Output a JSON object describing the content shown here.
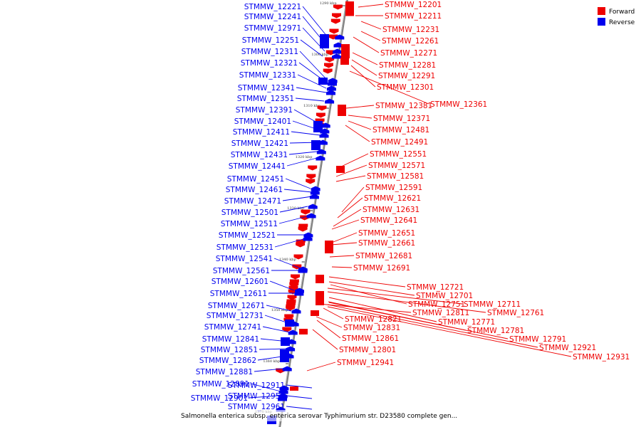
{
  "colors": {
    "forward": "#ee0000",
    "reverse": "#0000ee",
    "axis": "#808080"
  },
  "legend": [
    {
      "key": "forward",
      "label": "Forward"
    },
    {
      "key": "reverse",
      "label": "Reverse"
    }
  ],
  "caption": "Salmonella enterica subsp. enterica serovar Typhimurium str. D23580 complete gen...",
  "ticks": [
    "1290 kbp",
    "1300 kbp",
    "1310 kbp",
    "1320 kbp",
    "1330 kbp",
    "1340 kbp",
    "1350 kbp",
    "1360 kbp",
    "1370 kbp"
  ],
  "genes": [
    {
      "label": "STMMW_12201",
      "strand": "forward"
    },
    {
      "label": "STMMW_12211",
      "strand": "forward"
    },
    {
      "label": "STMMW_12221",
      "strand": "reverse"
    },
    {
      "label": "STMMW_12231",
      "strand": "forward"
    },
    {
      "label": "STMMW_12241",
      "strand": "reverse"
    },
    {
      "label": "STMMW_12261",
      "strand": "forward"
    },
    {
      "label": "STMMW_12271",
      "strand": "forward"
    },
    {
      "label": "STMMW_12281",
      "strand": "forward"
    },
    {
      "label": "STMMW_12291",
      "strand": "forward"
    },
    {
      "label": "STMMW_12301",
      "strand": "forward"
    },
    {
      "label": "STMMW_12361",
      "strand": "forward"
    },
    {
      "label": "STMMW_12381",
      "strand": "forward"
    },
    {
      "label": "STMMW_12371",
      "strand": "forward"
    },
    {
      "label": "STMMW_12481",
      "strand": "forward"
    },
    {
      "label": "STMMW_12491",
      "strand": "forward"
    },
    {
      "label": "STMMW_12551",
      "strand": "forward"
    },
    {
      "label": "STMMW_12571",
      "strand": "forward"
    },
    {
      "label": "STMMW_12581",
      "strand": "forward"
    },
    {
      "label": "STMMW_12591",
      "strand": "forward"
    },
    {
      "label": "STMMW_12621",
      "strand": "forward"
    },
    {
      "label": "STMMW_12631",
      "strand": "forward"
    },
    {
      "label": "STMMW_12641",
      "strand": "forward"
    },
    {
      "label": "STMMW_12651",
      "strand": "forward"
    },
    {
      "label": "STMMW_12661",
      "strand": "forward"
    },
    {
      "label": "STMMW_12681",
      "strand": "forward"
    },
    {
      "label": "STMMW_12691",
      "strand": "forward"
    },
    {
      "label": "STMMW_12721",
      "strand": "forward"
    },
    {
      "label": "STMMW_12701",
      "strand": "forward"
    },
    {
      "label": "STMMW_12751",
      "strand": "forward"
    },
    {
      "label": "STMMW_12711",
      "strand": "forward"
    },
    {
      "label": "STMMW_12811",
      "strand": "forward"
    },
    {
      "label": "STMMW_12761",
      "strand": "forward"
    },
    {
      "label": "STMMW_12821",
      "strand": "forward"
    },
    {
      "label": "STMMW_12771",
      "strand": "forward"
    },
    {
      "label": "STMMW_12831",
      "strand": "forward"
    },
    {
      "label": "STMMW_12781",
      "strand": "forward"
    },
    {
      "label": "STMMW_12861",
      "strand": "forward"
    },
    {
      "label": "STMMW_12791",
      "strand": "forward"
    },
    {
      "label": "STMMW_12801",
      "strand": "forward"
    },
    {
      "label": "STMMW_12921",
      "strand": "forward"
    },
    {
      "label": "STMMW_12931",
      "strand": "forward"
    },
    {
      "label": "STMMW_12941",
      "strand": "forward"
    },
    {
      "label": "STMMW_12971",
      "strand": "reverse"
    },
    {
      "label": "STMMW_12251",
      "strand": "reverse"
    },
    {
      "label": "STMMW_12311",
      "strand": "reverse"
    },
    {
      "label": "STMMW_12321",
      "strand": "reverse"
    },
    {
      "label": "STMMW_12331",
      "strand": "reverse"
    },
    {
      "label": "STMMW_12341",
      "strand": "reverse"
    },
    {
      "label": "STMMW_12351",
      "strand": "reverse"
    },
    {
      "label": "STMMW_12391",
      "strand": "reverse"
    },
    {
      "label": "STMMW_12401",
      "strand": "reverse"
    },
    {
      "label": "STMMW_12411",
      "strand": "reverse"
    },
    {
      "label": "STMMW_12421",
      "strand": "reverse"
    },
    {
      "label": "STMMW_12431",
      "strand": "reverse"
    },
    {
      "label": "STMMW_12441",
      "strand": "reverse"
    },
    {
      "label": "STMMW_12451",
      "strand": "reverse"
    },
    {
      "label": "STMMW_12461",
      "strand": "reverse"
    },
    {
      "label": "STMMW_12471",
      "strand": "reverse"
    },
    {
      "label": "STMMW_12501",
      "strand": "reverse"
    },
    {
      "label": "STMMW_12511",
      "strand": "reverse"
    },
    {
      "label": "STMMW_12521",
      "strand": "reverse"
    },
    {
      "label": "STMMW_12531",
      "strand": "reverse"
    },
    {
      "label": "STMMW_12541",
      "strand": "reverse"
    },
    {
      "label": "STMMW_12561",
      "strand": "reverse"
    },
    {
      "label": "STMMW_12601",
      "strand": "reverse"
    },
    {
      "label": "STMMW_12611",
      "strand": "reverse"
    },
    {
      "label": "STMMW_12671",
      "strand": "reverse"
    },
    {
      "label": "STMMW_12731",
      "strand": "reverse"
    },
    {
      "label": "STMMW_12741",
      "strand": "reverse"
    },
    {
      "label": "STMMW_12841",
      "strand": "reverse"
    },
    {
      "label": "STMMW_12851",
      "strand": "reverse"
    },
    {
      "label": "STMMW_12862",
      "strand": "reverse"
    },
    {
      "label": "STMMW_12881",
      "strand": "reverse"
    },
    {
      "label": "STMMW_12891",
      "strand": "reverse"
    },
    {
      "label": "STMMW_12901",
      "strand": "reverse"
    },
    {
      "label": "STMMW_12911",
      "strand": "reverse"
    },
    {
      "label": "STMMW_12951",
      "strand": "reverse"
    },
    {
      "label": "STMMW_12961",
      "strand": "reverse"
    }
  ]
}
